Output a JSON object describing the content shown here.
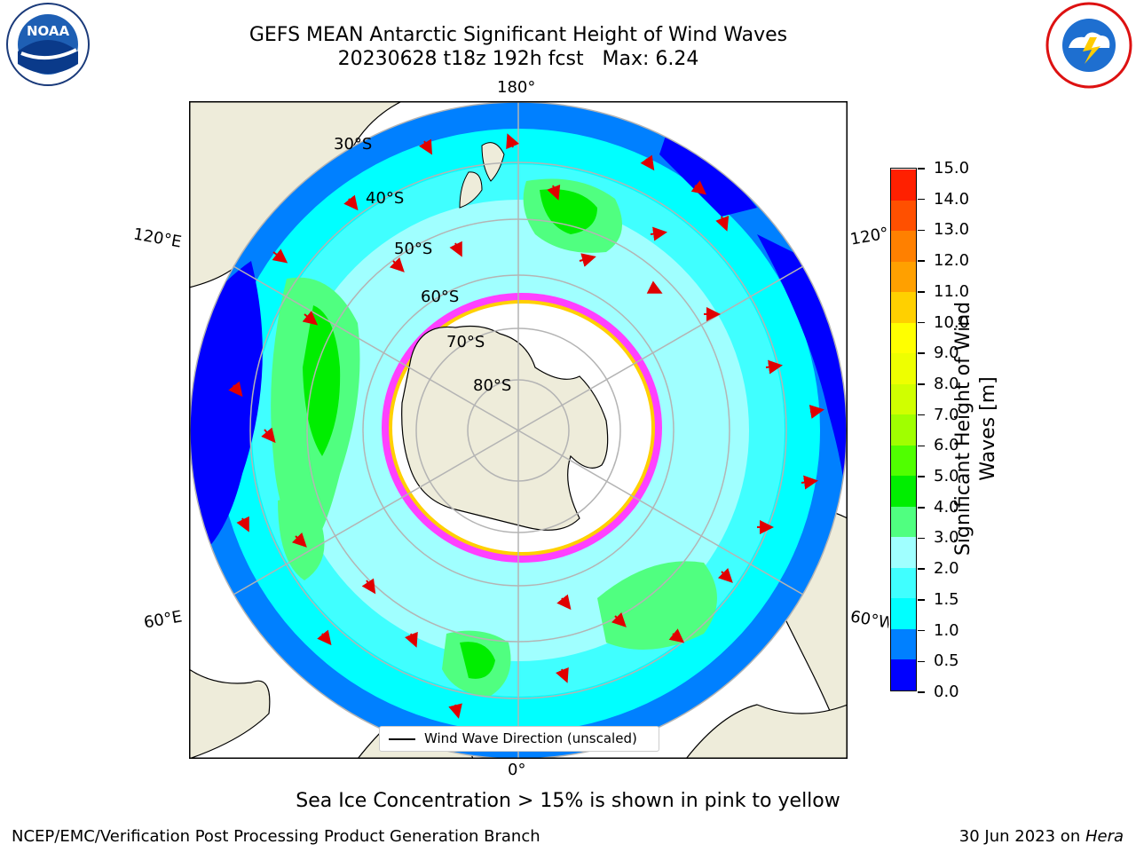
{
  "header": {
    "title_line1": "GEFS MEAN Antarctic Significant Height of Wind Waves",
    "title_line2": "20230628 t18z 192h fcst   Max: 6.24"
  },
  "logos": {
    "left": {
      "text": "NOAA",
      "icon": "noaa-logo-icon"
    },
    "right": {
      "icon": "nws-logo-icon"
    }
  },
  "map": {
    "lon_labels": {
      "top": "180°",
      "bottom": "0°",
      "left_upper": "120°E",
      "left_lower": "60°E",
      "right_upper": "120°",
      "right_lower": "60°W"
    },
    "lat_labels": [
      "30°S",
      "40°S",
      "50°S",
      "60°S",
      "70°S",
      "80°S"
    ],
    "legend": "Wind Wave Direction (unscaled)"
  },
  "colorbar": {
    "label_line1": "Significant Height of Wind",
    "label_line2": "Waves [m]",
    "ticks": [
      "0.0",
      "0.5",
      "1.0",
      "1.5",
      "2.0",
      "3.0",
      "4.0",
      "5.0",
      "6.0",
      "7.0",
      "8.0",
      "9.0",
      "10.0",
      "11.0",
      "12.0",
      "13.0",
      "14.0",
      "15.0"
    ],
    "colors": [
      "#0000ff",
      "#0080ff",
      "#00ffff",
      "#40ffff",
      "#a0ffff",
      "#50ff80",
      "#00ee00",
      "#50ff00",
      "#a0ff00",
      "#d0ff00",
      "#eeff00",
      "#ffff00",
      "#ffd000",
      "#ffa000",
      "#ff8000",
      "#ff5000",
      "#ff2000"
    ]
  },
  "footer": {
    "sea_ice_note": "Sea Ice Concentration > 15% is shown in pink to yellow",
    "left": "NCEP/EMC/Verification Post Processing Product Generation Branch",
    "right_prefix": "30 Jun 2023 on ",
    "right_host": "Hera"
  }
}
